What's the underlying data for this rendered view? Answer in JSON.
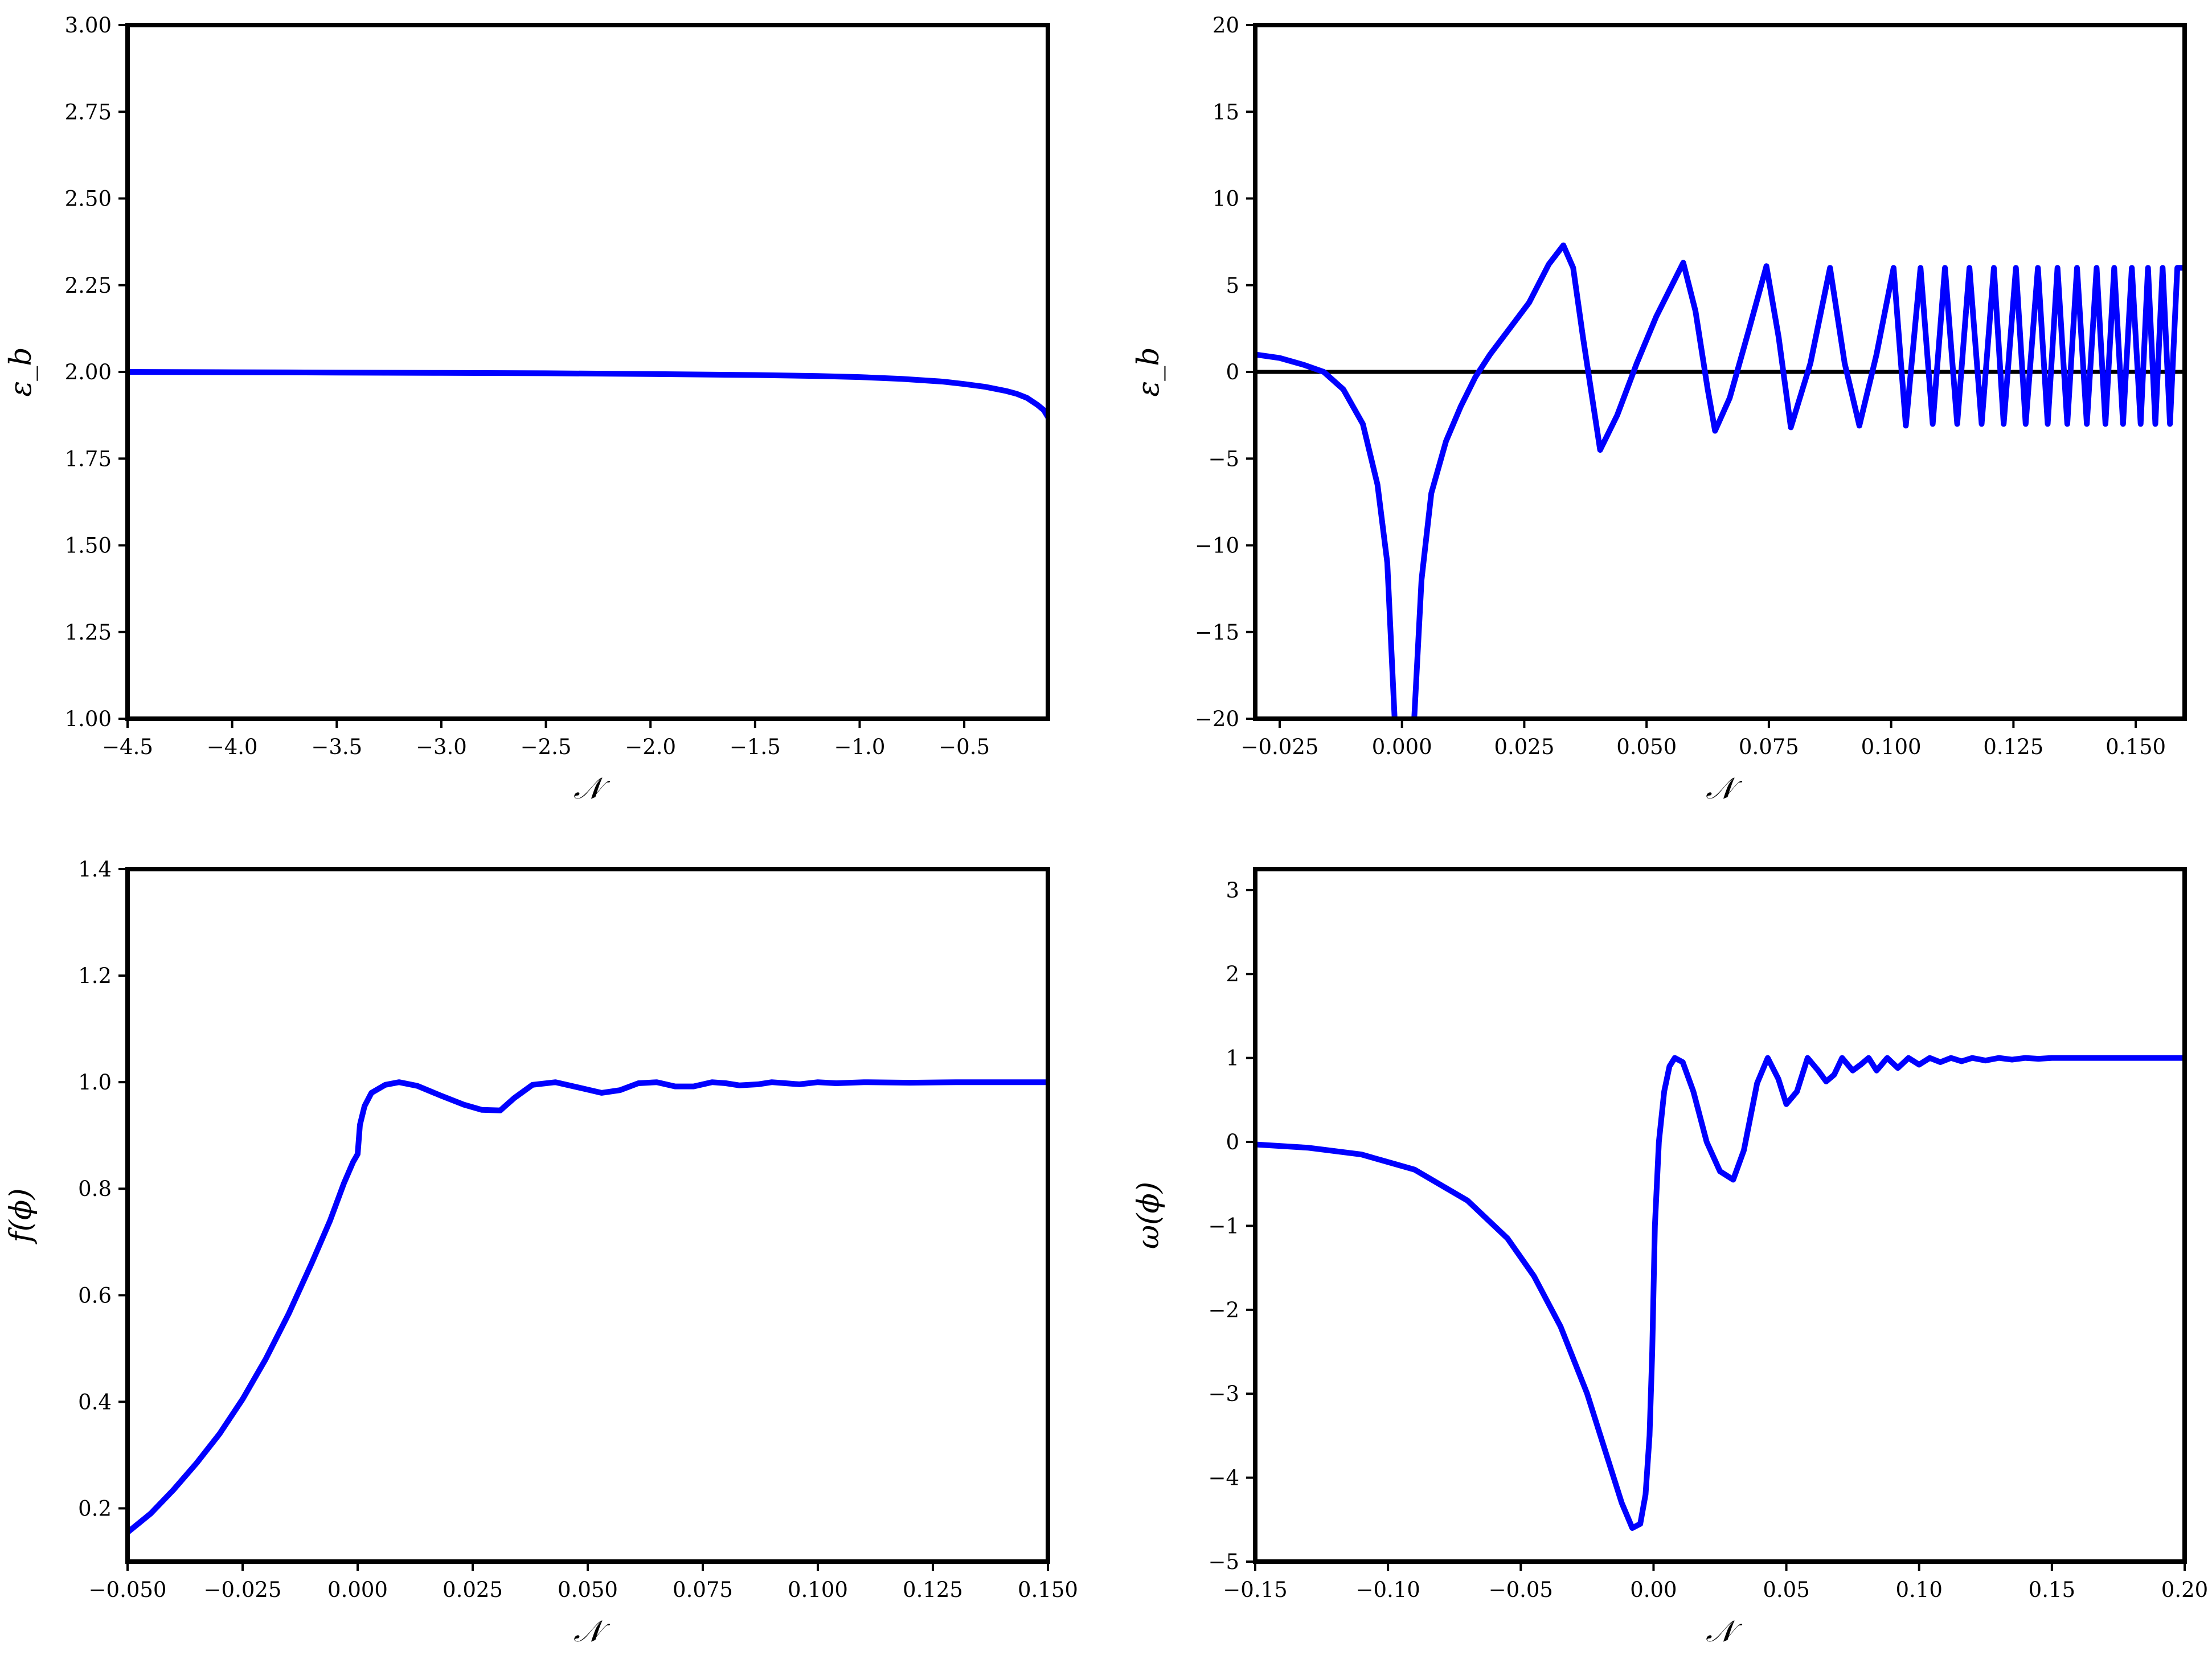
{
  "chart_data": [
    {
      "type": "line",
      "xlabel": "𝒩",
      "ylabel": "ε_b",
      "xlim": [
        -4.5,
        -0.1
      ],
      "ylim": [
        1.0,
        3.0
      ],
      "xticks": [
        -4.5,
        -4.0,
        -3.5,
        -3.0,
        -2.5,
        -2.0,
        -1.5,
        -1.0,
        -0.5
      ],
      "xtick_labels": [
        "−4.5",
        "−4.0",
        "−3.5",
        "−3.0",
        "−2.5",
        "−2.0",
        "−1.5",
        "−1.0",
        "−0.5"
      ],
      "yticks": [
        1.0,
        1.25,
        1.5,
        1.75,
        2.0,
        2.25,
        2.5,
        2.75,
        3.0
      ],
      "ytick_labels": [
        "1.00",
        "1.25",
        "1.50",
        "1.75",
        "2.00",
        "2.25",
        "2.50",
        "2.75",
        "3.00"
      ],
      "series": [
        {
          "color": "#0000ff",
          "x": [
            -4.5,
            -4.0,
            -3.5,
            -3.0,
            -2.5,
            -2.0,
            -1.5,
            -1.2,
            -1.0,
            -0.8,
            -0.6,
            -0.5,
            -0.4,
            -0.3,
            -0.25,
            -0.2,
            -0.15,
            -0.12,
            -0.1
          ],
          "y": [
            2.0,
            1.999,
            1.998,
            1.997,
            1.996,
            1.994,
            1.991,
            1.988,
            1.985,
            1.98,
            1.972,
            1.965,
            1.957,
            1.945,
            1.937,
            1.925,
            1.905,
            1.89,
            1.87
          ]
        }
      ]
    },
    {
      "type": "line",
      "xlabel": "𝒩",
      "ylabel": "ε_b",
      "xlim": [
        -0.03,
        0.16
      ],
      "ylim": [
        -20,
        20
      ],
      "xticks": [
        -0.025,
        0.0,
        0.025,
        0.05,
        0.075,
        0.1,
        0.125,
        0.15
      ],
      "xtick_labels": [
        "−0.025",
        "0.000",
        "0.025",
        "0.050",
        "0.075",
        "0.100",
        "0.125",
        "0.150"
      ],
      "yticks": [
        -20,
        -15,
        -10,
        -5,
        0,
        5,
        10,
        15,
        20
      ],
      "ytick_labels": [
        "−20",
        "−15",
        "−10",
        "−5",
        "0",
        "5",
        "10",
        "15",
        "20"
      ],
      "hline": 0,
      "series": [
        {
          "color": "#0000ff",
          "x": [
            -0.03,
            -0.025,
            -0.02,
            -0.016,
            -0.012,
            -0.008,
            -0.005,
            -0.003,
            -0.0015
          ],
          "y": [
            1.0,
            0.8,
            0.4,
            0.0,
            -1.0,
            -3.0,
            -6.5,
            -11.0,
            -20.0
          ]
        },
        {
          "color": "#0000ff",
          "x": [
            0.0025,
            0.004,
            0.006,
            0.009,
            0.012,
            0.015,
            0.018,
            0.022,
            0.026,
            0.03,
            0.033,
            0.035,
            0.037,
            0.0405,
            0.044,
            0.048,
            0.052,
            0.0575,
            0.06,
            0.0625,
            0.064,
            0.067,
            0.071,
            0.0745,
            0.077,
            0.0795,
            0.0835,
            0.0875,
            0.0905,
            0.0935,
            0.097,
            0.1005,
            0.103,
            0.106,
            0.1085,
            0.111,
            0.1135,
            0.116,
            0.1185,
            0.121,
            0.123,
            0.1255,
            0.1275,
            0.13,
            0.132,
            0.134,
            0.136,
            0.138,
            0.14,
            0.142,
            0.1438,
            0.1456,
            0.1474,
            0.1492,
            0.151,
            0.1525,
            0.154,
            0.1555,
            0.157,
            0.1585,
            0.16
          ],
          "y": [
            -20.0,
            -12.0,
            -7.0,
            -4.0,
            -2.0,
            -0.3,
            1.0,
            2.5,
            4.0,
            6.2,
            7.3,
            6.0,
            2.0,
            -4.5,
            -2.5,
            0.5,
            3.2,
            6.3,
            3.5,
            -1.0,
            -3.4,
            -1.5,
            2.5,
            6.1,
            2.0,
            -3.2,
            0.5,
            6.0,
            0.5,
            -3.1,
            1.0,
            6.0,
            -3.1,
            6.0,
            -3.0,
            6.0,
            -3.0,
            6.0,
            -3.0,
            6.0,
            -3.0,
            6.0,
            -3.0,
            6.0,
            -3.0,
            6.0,
            -3.0,
            6.0,
            -3.0,
            6.0,
            -3.0,
            6.0,
            -3.0,
            6.0,
            -3.0,
            6.0,
            -3.0,
            6.0,
            -3.0,
            6.0,
            6.0
          ]
        }
      ]
    },
    {
      "type": "line",
      "xlabel": "𝒩",
      "ylabel": "f(ϕ)",
      "xlim": [
        -0.05,
        0.15
      ],
      "ylim": [
        0.1,
        1.4
      ],
      "xticks": [
        -0.05,
        -0.025,
        0.0,
        0.025,
        0.05,
        0.075,
        0.1,
        0.125,
        0.15
      ],
      "xtick_labels": [
        "−0.050",
        "−0.025",
        "0.000",
        "0.025",
        "0.050",
        "0.075",
        "0.100",
        "0.125",
        "0.150"
      ],
      "yticks": [
        0.2,
        0.4,
        0.6,
        0.8,
        1.0,
        1.2,
        1.4
      ],
      "ytick_labels": [
        "0.2",
        "0.4",
        "0.6",
        "0.8",
        "1.0",
        "1.2",
        "1.4"
      ],
      "series": [
        {
          "color": "#0000ff",
          "x": [
            -0.05,
            -0.045,
            -0.04,
            -0.035,
            -0.03,
            -0.025,
            -0.02,
            -0.015,
            -0.01,
            -0.006,
            -0.003,
            -0.001,
            0.0,
            0.0005,
            0.0015,
            0.003,
            0.006,
            0.009,
            0.013,
            0.018,
            0.023,
            0.027,
            0.031,
            0.034,
            0.038,
            0.043,
            0.048,
            0.053,
            0.057,
            0.061,
            0.065,
            0.069,
            0.073,
            0.077,
            0.08,
            0.083,
            0.087,
            0.09,
            0.093,
            0.096,
            0.1,
            0.104,
            0.11,
            0.12,
            0.13,
            0.14,
            0.15
          ],
          "y": [
            0.155,
            0.19,
            0.235,
            0.285,
            0.34,
            0.405,
            0.48,
            0.565,
            0.66,
            0.74,
            0.81,
            0.85,
            0.865,
            0.92,
            0.955,
            0.98,
            0.995,
            1.0,
            0.993,
            0.975,
            0.958,
            0.948,
            0.947,
            0.97,
            0.995,
            1.0,
            0.99,
            0.98,
            0.985,
            0.998,
            1.0,
            0.992,
            0.992,
            1.0,
            0.998,
            0.994,
            0.996,
            1.0,
            0.998,
            0.996,
            1.0,
            0.998,
            1.0,
            0.999,
            1.0,
            1.0,
            1.0
          ]
        }
      ]
    },
    {
      "type": "line",
      "xlabel": "𝒩",
      "ylabel": "ω(ϕ)",
      "xlim": [
        -0.15,
        0.2
      ],
      "ylim": [
        -5,
        3.25
      ],
      "xticks": [
        -0.15,
        -0.1,
        -0.05,
        0.0,
        0.05,
        0.1,
        0.15,
        0.2
      ],
      "xtick_labels": [
        "−0.15",
        "−0.10",
        "−0.05",
        "0.00",
        "0.05",
        "0.10",
        "0.15",
        "0.20"
      ],
      "yticks": [
        -5,
        -4,
        -3,
        -2,
        -1,
        0,
        1,
        2,
        3
      ],
      "ytick_labels": [
        "−5",
        "−4",
        "−3",
        "−2",
        "−1",
        "0",
        "1",
        "2",
        "3"
      ],
      "series": [
        {
          "color": "#0000ff",
          "x": [
            -0.15,
            -0.13,
            -0.11,
            -0.09,
            -0.07,
            -0.055,
            -0.045,
            -0.035,
            -0.025,
            -0.018,
            -0.012,
            -0.008,
            -0.005,
            -0.003,
            -0.0015,
            -0.0005,
            0.0005,
            0.002,
            0.004,
            0.006,
            0.008,
            0.011,
            0.015,
            0.02,
            0.025,
            0.03,
            0.034,
            0.039,
            0.043,
            0.047,
            0.05,
            0.054,
            0.058,
            0.062,
            0.065,
            0.068,
            0.071,
            0.075,
            0.078,
            0.081,
            0.084,
            0.088,
            0.092,
            0.096,
            0.1,
            0.104,
            0.108,
            0.112,
            0.116,
            0.12,
            0.125,
            0.13,
            0.135,
            0.14,
            0.145,
            0.15,
            0.16,
            0.17,
            0.18,
            0.19,
            0.2
          ],
          "y": [
            -0.03,
            -0.07,
            -0.15,
            -0.33,
            -0.7,
            -1.15,
            -1.6,
            -2.2,
            -3.0,
            -3.7,
            -4.3,
            -4.6,
            -4.55,
            -4.2,
            -3.5,
            -2.5,
            -1.0,
            0.0,
            0.6,
            0.9,
            1.0,
            0.95,
            0.6,
            0.0,
            -0.35,
            -0.45,
            -0.1,
            0.7,
            1.0,
            0.75,
            0.45,
            0.6,
            1.0,
            0.85,
            0.72,
            0.8,
            1.0,
            0.85,
            0.92,
            1.0,
            0.85,
            1.0,
            0.88,
            1.0,
            0.92,
            1.0,
            0.95,
            1.0,
            0.96,
            1.0,
            0.97,
            1.0,
            0.98,
            1.0,
            0.99,
            1.0,
            1.0,
            1.0,
            1.0,
            1.0,
            1.0
          ]
        }
      ]
    }
  ]
}
